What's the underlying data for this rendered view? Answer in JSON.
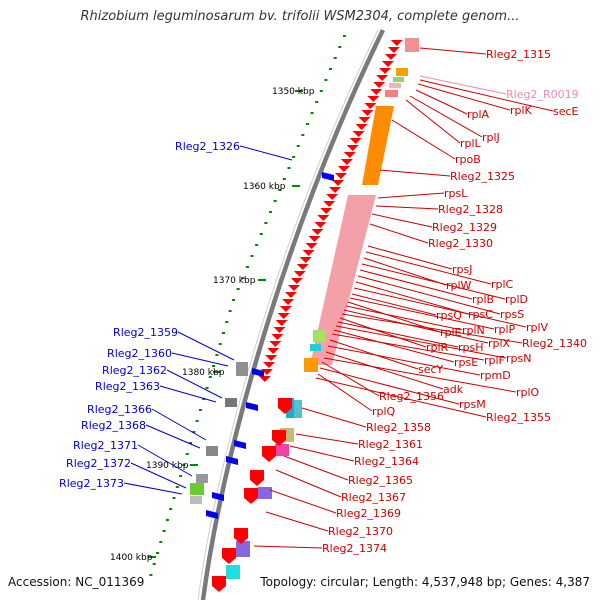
{
  "title": "Rhizobium leguminosarum bv. trifolii WSM2304, complete genom...",
  "footer": {
    "accession": "Accession: NC_011369",
    "summary": "Topology: circular; Length: 4,537,948 bp; Genes: 4,387"
  },
  "colors": {
    "backbone": "#808080",
    "forward_label": "#cc0000",
    "reverse_label": "#0000cc",
    "rna_label": "#ee88bb",
    "tick": "#008800"
  },
  "scale": {
    "unit": "kbp",
    "ticks": [
      {
        "label": "1350 kbp"
      },
      {
        "label": "1360 kbp"
      },
      {
        "label": "1370 kbp"
      },
      {
        "label": "1380 kbp"
      },
      {
        "label": "1390 kbp"
      },
      {
        "label": "1400 kbp"
      }
    ]
  },
  "reverse_genes": [
    "Rleg2_1326",
    "Rleg2_1359",
    "Rleg2_1360",
    "Rleg2_1362",
    "Rleg2_1363",
    "Rleg2_1366",
    "Rleg2_1368",
    "Rleg2_1371",
    "Rleg2_1372",
    "Rleg2_1373"
  ],
  "forward_genes": [
    "Rleg2_1315",
    "Rleg2_R0019",
    "secE",
    "rplK",
    "rplA",
    "rplJ",
    "rplL",
    "rpoB",
    "Rleg2_1325",
    "rpsL",
    "Rleg2_1328",
    "Rleg2_1329",
    "Rleg2_1330",
    "rpsJ",
    "rplC",
    "rplW",
    "rplD",
    "rplB",
    "rpsS",
    "rpsC",
    "rplV",
    "rpsQ",
    "rplP",
    "rplE",
    "rplN",
    "rplX",
    "Rleg2_1340",
    "rplR",
    "rpsH",
    "rpsN",
    "rpsE",
    "rplF",
    "secY",
    "rpmD",
    "adk",
    "rplO",
    "Rleg2_1356",
    "rpsM",
    "rplQ",
    "Rleg2_1355",
    "Rleg2_1358",
    "Rleg2_1361",
    "Rleg2_1364",
    "Rleg2_1365",
    "Rleg2_1367",
    "Rleg2_1369",
    "Rleg2_1370",
    "Rleg2_1374"
  ]
}
